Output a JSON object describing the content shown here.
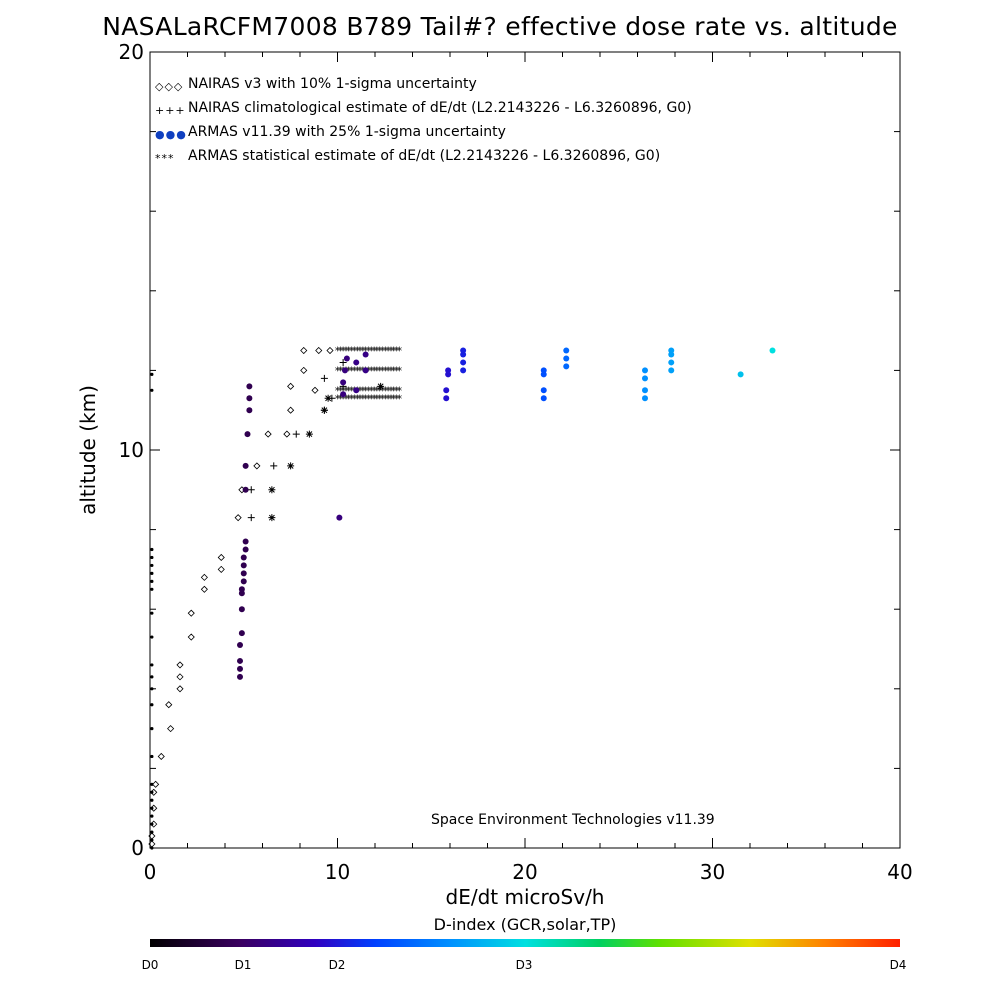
{
  "title": "NASALaRCFM7008  B789 Tail#? effective dose rate vs. altitude",
  "xlabel": "dE/dt microSv/h",
  "ylabel": "altitude (km)",
  "footer": "Space Environment Technologies v11.39",
  "colorbar": {
    "title": "D-index (GCR,solar,TP)",
    "ticks": [
      {
        "label": "D0",
        "pos": 0.0
      },
      {
        "label": "D1",
        "pos": 0.125
      },
      {
        "label": "D2",
        "pos": 0.25
      },
      {
        "label": "D3",
        "pos": 0.5
      },
      {
        "label": "D4",
        "pos": 1.0
      }
    ]
  },
  "legend": [
    {
      "label": "NAIRAS v3 with 10% 1-sigma uncertainty",
      "symbol": "◇◇◇",
      "color": "#000000"
    },
    {
      "label": "NAIRAS climatological estimate of dE/dt (L2.2143226 - L6.3260896, G0)",
      "symbol": "+++",
      "color": "#000000"
    },
    {
      "label": "ARMAS v11.39 with 25% 1-sigma uncertainty",
      "symbol": "●●●",
      "color": "#1040c0"
    },
    {
      "label": "ARMAS statistical estimate of dE/dt (L2.2143226 - L6.3260896, G0)",
      "symbol": "***",
      "color": "#000000"
    }
  ],
  "chart_data": {
    "type": "scatter",
    "xlim": [
      0,
      40
    ],
    "ylim": [
      0,
      20
    ],
    "xticks": [
      0,
      10,
      20,
      30,
      40
    ],
    "yticks": [
      0,
      10,
      20
    ],
    "series": [
      {
        "name": "NAIRAS v3 with 10% 1-sigma uncertainty",
        "marker": "diamond",
        "color": "#000000",
        "points": [
          [
            0.1,
            0.1
          ],
          [
            0.1,
            0.3
          ],
          [
            0.2,
            0.6
          ],
          [
            0.2,
            1.0
          ],
          [
            0.2,
            1.4
          ],
          [
            0.3,
            1.6
          ],
          [
            0.6,
            2.3
          ],
          [
            1.1,
            3.0
          ],
          [
            1.0,
            3.6
          ],
          [
            1.6,
            4.0
          ],
          [
            1.6,
            4.3
          ],
          [
            1.6,
            4.6
          ],
          [
            2.2,
            5.3
          ],
          [
            2.2,
            5.9
          ],
          [
            2.9,
            6.5
          ],
          [
            2.9,
            6.8
          ],
          [
            3.8,
            7.0
          ],
          [
            3.8,
            7.3
          ],
          [
            4.7,
            8.3
          ],
          [
            4.9,
            9.0
          ],
          [
            5.7,
            9.6
          ],
          [
            6.3,
            10.4
          ],
          [
            7.3,
            10.4
          ],
          [
            7.5,
            11.0
          ],
          [
            7.5,
            11.6
          ],
          [
            8.2,
            12.0
          ],
          [
            8.2,
            12.5
          ],
          [
            9.0,
            12.5
          ],
          [
            9.6,
            12.5
          ],
          [
            8.8,
            11.5
          ]
        ]
      },
      {
        "name": "NAIRAS climatological estimate of dE/dt (L2.2143226 - L6.3260896, G0)",
        "marker": "plus",
        "color": "#000000",
        "points": [
          [
            5.4,
            8.3
          ],
          [
            5.4,
            9.0
          ],
          [
            6.6,
            9.6
          ],
          [
            7.8,
            10.4
          ],
          [
            9.3,
            11.0
          ],
          [
            9.7,
            11.3
          ],
          [
            9.3,
            11.8
          ],
          [
            10.3,
            11.6
          ],
          [
            10.3,
            12.2
          ]
        ]
      },
      {
        "name": "ARMAS v11.39 with 25% 1-sigma uncertainty",
        "marker": "circle",
        "color": "#1040c0",
        "points": [
          [
            4.8,
            4.3
          ],
          [
            4.8,
            4.5
          ],
          [
            4.8,
            4.7
          ],
          [
            4.8,
            5.1
          ],
          [
            4.9,
            5.4
          ],
          [
            4.9,
            6.0
          ],
          [
            4.9,
            6.4
          ],
          [
            4.9,
            6.5
          ],
          [
            5.0,
            6.7
          ],
          [
            5.0,
            6.9
          ],
          [
            5.0,
            7.1
          ],
          [
            5.0,
            7.3
          ],
          [
            5.1,
            7.5
          ],
          [
            5.1,
            7.7
          ],
          [
            5.1,
            9.0
          ],
          [
            5.1,
            9.6
          ],
          [
            5.2,
            10.4
          ],
          [
            5.3,
            11.0
          ],
          [
            5.3,
            11.3
          ],
          [
            5.3,
            11.6
          ],
          [
            10.1,
            8.3
          ],
          [
            10.3,
            11.4
          ],
          [
            10.3,
            11.7
          ],
          [
            10.4,
            12.0
          ],
          [
            10.5,
            12.3
          ],
          [
            11.0,
            11.5
          ],
          [
            11.0,
            12.2
          ],
          [
            11.5,
            12.0
          ],
          [
            11.5,
            12.4
          ],
          [
            15.8,
            11.3
          ],
          [
            15.8,
            11.5
          ],
          [
            15.9,
            11.9
          ],
          [
            15.9,
            12.0
          ],
          [
            16.7,
            12.0
          ],
          [
            16.7,
            12.2
          ],
          [
            16.7,
            12.4
          ],
          [
            16.7,
            12.5
          ],
          [
            21.0,
            11.3
          ],
          [
            21.0,
            11.5
          ],
          [
            21.0,
            11.9
          ],
          [
            21.0,
            12.0
          ],
          [
            22.2,
            12.1
          ],
          [
            22.2,
            12.3
          ],
          [
            22.2,
            12.5
          ],
          [
            26.4,
            11.3
          ],
          [
            26.4,
            11.5
          ],
          [
            26.4,
            11.8
          ],
          [
            26.4,
            12.0
          ],
          [
            27.8,
            12.0
          ],
          [
            27.8,
            12.2
          ],
          [
            27.8,
            12.4
          ],
          [
            27.8,
            12.5
          ],
          [
            31.5,
            11.9
          ],
          [
            33.2,
            12.5
          ]
        ],
        "colors_dindex": [
          0.1,
          0.1,
          0.1,
          0.1,
          0.1,
          0.1,
          0.1,
          0.1,
          0.1,
          0.1,
          0.1,
          0.1,
          0.1,
          0.1,
          0.1,
          0.1,
          0.1,
          0.1,
          0.1,
          0.1,
          0.15,
          0.15,
          0.15,
          0.15,
          0.15,
          0.16,
          0.16,
          0.16,
          0.16,
          0.24,
          0.24,
          0.24,
          0.24,
          0.26,
          0.26,
          0.26,
          0.26,
          0.32,
          0.32,
          0.32,
          0.32,
          0.35,
          0.35,
          0.35,
          0.4,
          0.4,
          0.4,
          0.4,
          0.42,
          0.42,
          0.42,
          0.42,
          0.46,
          0.5
        ]
      },
      {
        "name": "ARMAS statistical estimate of dE/dt (L2.2143226 - L6.3260896, G0)",
        "marker": "asterisk",
        "color": "#000000",
        "points": [
          [
            6.5,
            8.3
          ],
          [
            6.5,
            9.0
          ],
          [
            7.5,
            9.6
          ],
          [
            8.5,
            10.4
          ],
          [
            9.3,
            11.0
          ],
          [
            9.5,
            11.3
          ],
          [
            12.3,
            11.6
          ]
        ]
      }
    ],
    "armas_dense_band": {
      "x_range": [
        10.0,
        13.4
      ],
      "y_values": [
        11.3,
        11.5,
        12.0,
        12.5
      ],
      "color": "#000000"
    },
    "near_zero_points": {
      "x": 0.1,
      "y_values": [
        0.0,
        0.2,
        0.4,
        0.6,
        0.8,
        1.0,
        1.2,
        1.4,
        1.6,
        2.3,
        3.0,
        3.6,
        4.0,
        4.3,
        4.6,
        5.3,
        5.9,
        6.5,
        6.7,
        6.9,
        7.1,
        7.3,
        7.5,
        11.5,
        11.9
      ]
    }
  }
}
